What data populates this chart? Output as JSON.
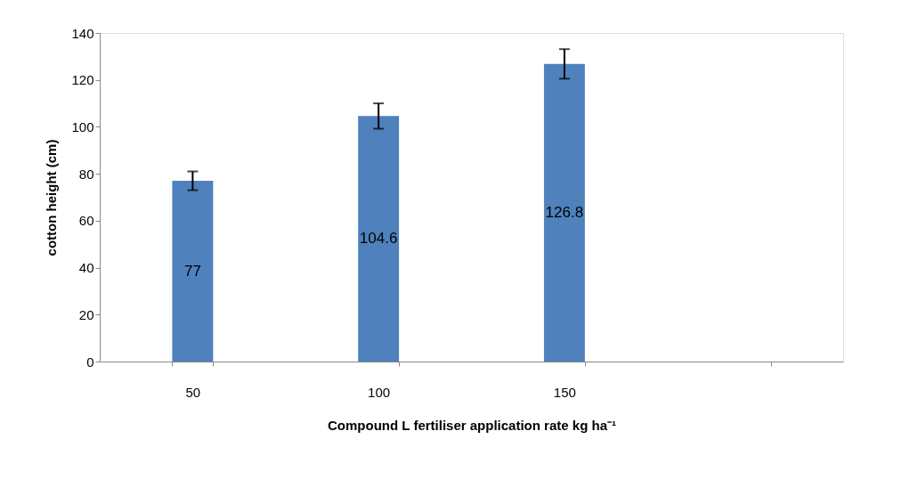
{
  "chart_data": {
    "type": "bar",
    "categories": [
      "50",
      "100",
      "150",
      null
    ],
    "values": [
      77,
      104.6,
      126.8,
      null
    ],
    "errors": [
      4,
      5.4,
      6.3,
      null
    ],
    "color": "#4f81bd",
    "ylabel": "cotton height (cm)",
    "xlabel": "Compound L fertiliser application rate kg ha⁻¹",
    "ylim": [
      0,
      140
    ],
    "yticks": [
      0,
      20,
      40,
      60,
      80,
      100,
      120,
      140
    ],
    "data_labels": true,
    "grid": false
  }
}
